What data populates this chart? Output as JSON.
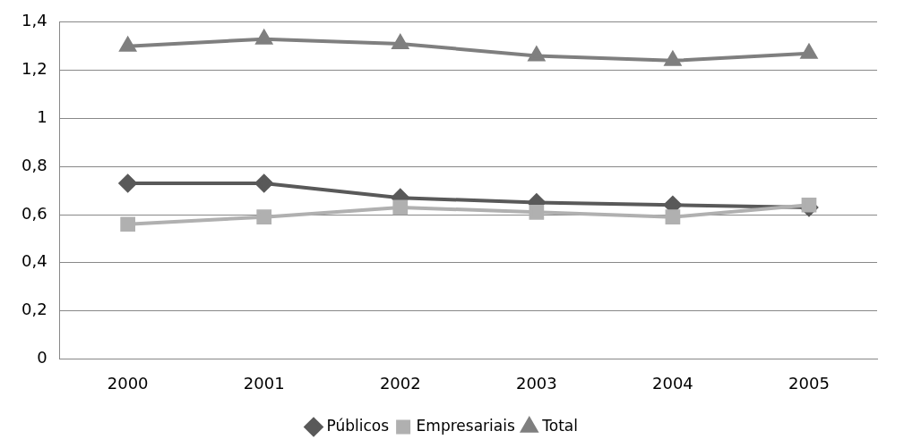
{
  "chart_data": {
    "type": "line",
    "categories": [
      "2000",
      "2001",
      "2002",
      "2003",
      "2004",
      "2005"
    ],
    "series": [
      {
        "name": "Públicos",
        "color": "#595959",
        "marker": "diamond",
        "values": [
          0.73,
          0.73,
          0.67,
          0.65,
          0.64,
          0.63
        ]
      },
      {
        "name": "Empresariais",
        "color": "#b0b0b0",
        "marker": "square",
        "values": [
          0.56,
          0.59,
          0.63,
          0.61,
          0.59,
          0.64
        ]
      },
      {
        "name": "Total",
        "color": "#7f7f7f",
        "marker": "triangle",
        "values": [
          1.3,
          1.33,
          1.31,
          1.26,
          1.24,
          1.27
        ]
      }
    ],
    "ylim": [
      0,
      1.4
    ],
    "yticks": [
      0,
      {
        "value": 0.2,
        "label": "0,2"
      },
      {
        "value": 0.4,
        "label": "0,4"
      },
      {
        "value": 0.6,
        "label": "0,6"
      },
      {
        "value": 0.8,
        "label": "0,8"
      },
      1,
      {
        "value": 1.2,
        "label": "1,2"
      },
      {
        "value": 1.4,
        "label": "1,4"
      }
    ],
    "grid": "y",
    "legend": "bottom"
  }
}
